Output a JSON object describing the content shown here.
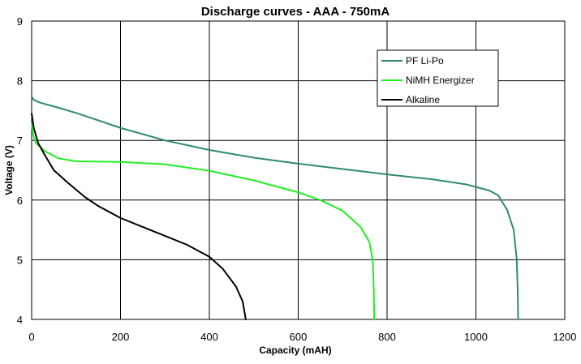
{
  "chart_data": {
    "type": "line",
    "title": "Discharge curves - AAA - 750mA",
    "xlabel": "Capacity (mAH)",
    "ylabel": "Voltage (V)",
    "xlim": [
      0,
      1200
    ],
    "ylim": [
      4,
      9
    ],
    "x_ticks": [
      0,
      200,
      400,
      600,
      800,
      1000,
      1200
    ],
    "y_ticks": [
      4,
      5,
      6,
      7,
      8,
      9
    ],
    "grid": true,
    "legend_position": "top-right",
    "series": [
      {
        "name": "PF Li-Po",
        "color": "#2e8b6e",
        "points": [
          [
            0,
            7.73
          ],
          [
            5,
            7.68
          ],
          [
            20,
            7.63
          ],
          [
            50,
            7.57
          ],
          [
            100,
            7.46
          ],
          [
            200,
            7.21
          ],
          [
            300,
            7.0
          ],
          [
            400,
            6.84
          ],
          [
            500,
            6.71
          ],
          [
            600,
            6.61
          ],
          [
            700,
            6.52
          ],
          [
            800,
            6.43
          ],
          [
            900,
            6.35
          ],
          [
            980,
            6.26
          ],
          [
            1030,
            6.16
          ],
          [
            1050,
            6.08
          ],
          [
            1070,
            5.84
          ],
          [
            1085,
            5.5
          ],
          [
            1092,
            5.0
          ],
          [
            1094,
            4.5
          ],
          [
            1095,
            4.0
          ]
        ]
      },
      {
        "name": "NiMH Energizer",
        "color": "#22ee22",
        "points": [
          [
            0,
            7.3
          ],
          [
            3,
            7.1
          ],
          [
            10,
            6.95
          ],
          [
            30,
            6.82
          ],
          [
            60,
            6.7
          ],
          [
            100,
            6.65
          ],
          [
            200,
            6.64
          ],
          [
            300,
            6.6
          ],
          [
            400,
            6.49
          ],
          [
            500,
            6.33
          ],
          [
            600,
            6.13
          ],
          [
            650,
            6.0
          ],
          [
            700,
            5.82
          ],
          [
            740,
            5.55
          ],
          [
            760,
            5.3
          ],
          [
            768,
            4.98
          ],
          [
            770,
            4.5
          ],
          [
            771,
            4.0
          ]
        ]
      },
      {
        "name": "Alkaline",
        "color": "#000000",
        "points": [
          [
            0,
            7.45
          ],
          [
            5,
            7.2
          ],
          [
            15,
            6.95
          ],
          [
            30,
            6.75
          ],
          [
            50,
            6.5
          ],
          [
            80,
            6.3
          ],
          [
            120,
            6.05
          ],
          [
            150,
            5.9
          ],
          [
            200,
            5.7
          ],
          [
            250,
            5.55
          ],
          [
            300,
            5.4
          ],
          [
            350,
            5.25
          ],
          [
            400,
            5.05
          ],
          [
            430,
            4.85
          ],
          [
            460,
            4.55
          ],
          [
            475,
            4.3
          ],
          [
            482,
            4.0
          ]
        ]
      }
    ]
  }
}
